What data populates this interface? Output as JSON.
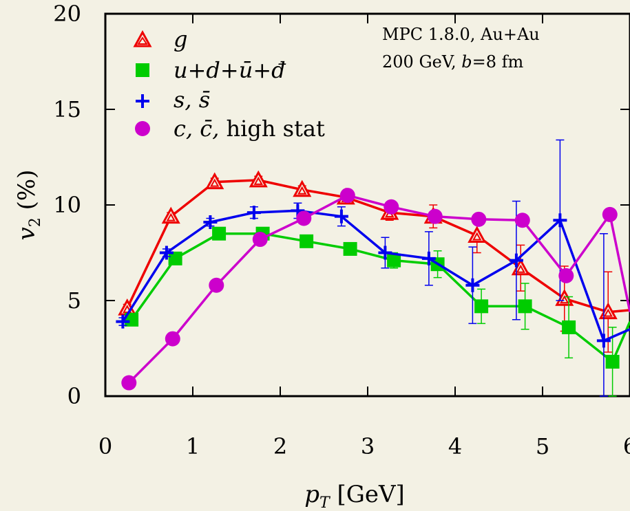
{
  "chart_data": {
    "type": "line",
    "title": "",
    "xlabel": "p_T [GeV]",
    "ylabel": "v_2 (%)",
    "xlim": [
      0,
      6
    ],
    "ylim": [
      0,
      20
    ],
    "xticks": [
      0,
      1,
      2,
      3,
      4,
      5,
      6
    ],
    "yticks": [
      0,
      5,
      10,
      15,
      20
    ],
    "grid": false,
    "legend_position": "top-left",
    "annotation": [
      "MPC 1.8.0, Au+Au",
      "200 GeV, b=8 fm"
    ],
    "series": [
      {
        "name": "g",
        "color": "#ee0000",
        "marker": "triangle-open",
        "points": [
          {
            "x": 0.25,
            "y": 4.6,
            "err": 0.2
          },
          {
            "x": 0.75,
            "y": 9.4,
            "err": 0.2
          },
          {
            "x": 1.25,
            "y": 11.2,
            "err": 0.2
          },
          {
            "x": 1.75,
            "y": 11.3,
            "err": 0.2
          },
          {
            "x": 2.25,
            "y": 10.8,
            "err": 0.2
          },
          {
            "x": 2.75,
            "y": 10.4,
            "err": 0.3
          },
          {
            "x": 3.25,
            "y": 9.6,
            "err": 0.4
          },
          {
            "x": 3.75,
            "y": 9.4,
            "err": 0.6
          },
          {
            "x": 4.25,
            "y": 8.4,
            "err": 0.9
          },
          {
            "x": 4.75,
            "y": 6.7,
            "err": 1.2
          },
          {
            "x": 5.25,
            "y": 5.1,
            "err": 1.7
          },
          {
            "x": 5.75,
            "y": 4.4,
            "err": 2.1
          },
          {
            "x": 6.0,
            "y": 4.5,
            "err": 0
          }
        ]
      },
      {
        "name": "u+d+ū+đ",
        "color": "#00cc00",
        "marker": "square-filled",
        "points": [
          {
            "x": 0.3,
            "y": 4.0,
            "err": 0.2
          },
          {
            "x": 0.8,
            "y": 7.2,
            "err": 0.2
          },
          {
            "x": 1.3,
            "y": 8.5,
            "err": 0.2
          },
          {
            "x": 1.8,
            "y": 8.5,
            "err": 0.2
          },
          {
            "x": 2.3,
            "y": 8.1,
            "err": 0.2
          },
          {
            "x": 2.8,
            "y": 7.7,
            "err": 0.2
          },
          {
            "x": 3.3,
            "y": 7.1,
            "err": 0.4
          },
          {
            "x": 3.8,
            "y": 6.9,
            "err": 0.7
          },
          {
            "x": 4.3,
            "y": 4.7,
            "err": 0.9
          },
          {
            "x": 4.8,
            "y": 4.7,
            "err": 1.2
          },
          {
            "x": 5.3,
            "y": 3.6,
            "err": 1.6
          },
          {
            "x": 5.8,
            "y": 1.8,
            "err": 1.8
          },
          {
            "x": 6.0,
            "y": 3.9,
            "err": 0
          }
        ]
      },
      {
        "name": "s, s̄",
        "color": "#0000ee",
        "marker": "plus",
        "points": [
          {
            "x": 0.2,
            "y": 3.9,
            "err": 0.2
          },
          {
            "x": 0.7,
            "y": 7.5,
            "err": 0.2
          },
          {
            "x": 1.2,
            "y": 9.1,
            "err": 0.2
          },
          {
            "x": 1.7,
            "y": 9.6,
            "err": 0.3
          },
          {
            "x": 2.2,
            "y": 9.7,
            "err": 0.4
          },
          {
            "x": 2.7,
            "y": 9.4,
            "err": 0.5
          },
          {
            "x": 3.2,
            "y": 7.5,
            "err": 0.8
          },
          {
            "x": 3.7,
            "y": 7.2,
            "err": 1.4
          },
          {
            "x": 4.2,
            "y": 5.8,
            "err": 2.0
          },
          {
            "x": 4.7,
            "y": 7.1,
            "err": 3.1
          },
          {
            "x": 5.2,
            "y": 9.2,
            "err": 4.2
          },
          {
            "x": 5.7,
            "y": 2.9,
            "err": 5.6
          },
          {
            "x": 6.0,
            "y": 3.5,
            "err": 0
          }
        ]
      },
      {
        "name": "c, c̄, high stat",
        "color": "#cc00cc",
        "marker": "circle-filled",
        "points": [
          {
            "x": 0.27,
            "y": 0.7,
            "err": 0.1
          },
          {
            "x": 0.77,
            "y": 3.0,
            "err": 0.1
          },
          {
            "x": 1.27,
            "y": 5.8,
            "err": 0.1
          },
          {
            "x": 1.77,
            "y": 8.2,
            "err": 0.1
          },
          {
            "x": 2.27,
            "y": 9.3,
            "err": 0.1
          },
          {
            "x": 2.77,
            "y": 10.5,
            "err": 0.1
          },
          {
            "x": 3.27,
            "y": 9.9,
            "err": 0.1
          },
          {
            "x": 3.77,
            "y": 9.4,
            "err": 0.2
          },
          {
            "x": 4.27,
            "y": 9.25,
            "err": 0.2
          },
          {
            "x": 4.77,
            "y": 9.2,
            "err": 0.2
          },
          {
            "x": 5.27,
            "y": 6.3,
            "err": 0.3
          },
          {
            "x": 5.77,
            "y": 9.5,
            "err": 0.3
          },
          {
            "x": 6.0,
            "y": 4.4,
            "err": 0
          }
        ]
      }
    ]
  }
}
